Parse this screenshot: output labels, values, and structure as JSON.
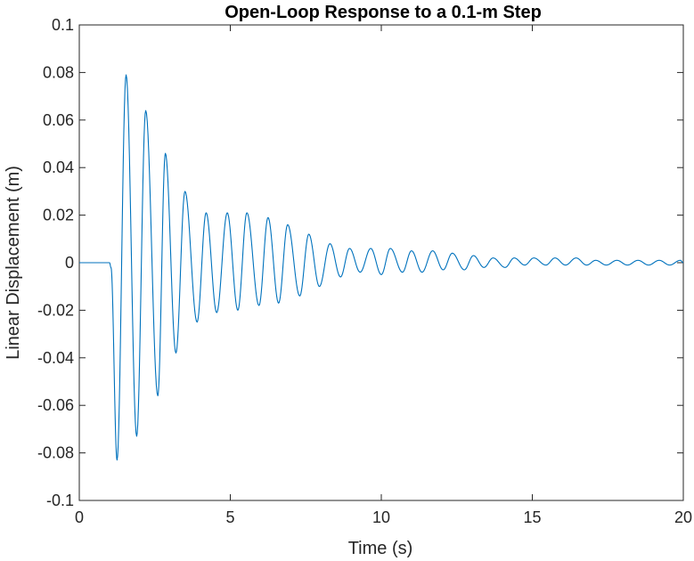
{
  "chart_data": {
    "type": "line",
    "title": "Open-Loop Response to a 0.1-m Step",
    "xlabel": "Time (s)",
    "ylabel": "Linear Displacement (m)",
    "xlim": [
      0,
      20
    ],
    "ylim": [
      -0.1,
      0.1
    ],
    "xticks": [
      0,
      5,
      10,
      15,
      20
    ],
    "xtick_labels": [
      "0",
      "5",
      "10",
      "15",
      "20"
    ],
    "yticks": [
      -0.1,
      -0.08,
      -0.06,
      -0.04,
      -0.02,
      0,
      0.02,
      0.04,
      0.06,
      0.08,
      0.1
    ],
    "ytick_labels": [
      "-0.1",
      "-0.08",
      "-0.06",
      "-0.04",
      "-0.02",
      "0",
      "0.02",
      "0.04",
      "0.06",
      "0.08",
      "0.1"
    ],
    "grid": false,
    "series": [
      {
        "color": "#0072BD",
        "x": [
          0,
          1.0,
          1.05,
          1.25,
          1.55,
          1.9,
          2.2,
          2.6,
          2.85,
          3.2,
          3.5,
          3.9,
          4.2,
          4.55,
          4.9,
          5.25,
          5.55,
          5.95,
          6.25,
          6.6,
          6.9,
          7.3,
          7.6,
          7.95,
          8.3,
          8.65,
          8.95,
          9.3,
          9.65,
          10.0,
          10.3,
          10.7,
          11.0,
          11.35,
          11.7,
          12.05,
          12.35,
          12.75,
          13.05,
          13.4,
          13.7,
          14.1,
          14.4,
          14.75,
          15.05,
          15.45,
          15.75,
          16.1,
          16.45,
          16.8,
          17.1,
          17.45,
          17.8,
          18.15,
          18.5,
          18.85,
          19.2,
          19.55,
          19.9,
          20.0
        ],
        "y": [
          0,
          0,
          -0.002,
          -0.083,
          0.079,
          -0.073,
          0.064,
          -0.056,
          0.046,
          -0.038,
          0.03,
          -0.025,
          0.021,
          -0.021,
          0.021,
          -0.02,
          0.021,
          -0.018,
          0.019,
          -0.017,
          0.016,
          -0.014,
          0.012,
          -0.01,
          0.008,
          -0.006,
          0.006,
          -0.004,
          0.006,
          -0.005,
          0.006,
          -0.004,
          0.005,
          -0.004,
          0.005,
          -0.003,
          0.004,
          -0.003,
          0.003,
          -0.002,
          0.002,
          -0.002,
          0.002,
          -0.001,
          0.002,
          -0.001,
          0.002,
          -0.001,
          0.002,
          -0.001,
          0.001,
          -0.001,
          0.001,
          -0.001,
          0.001,
          -0.001,
          0.001,
          -0.001,
          0.001,
          0.0
        ]
      }
    ]
  }
}
